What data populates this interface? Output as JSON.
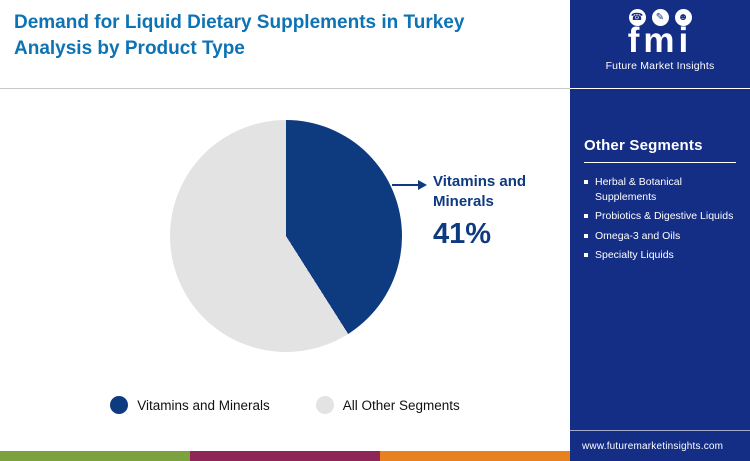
{
  "header": {
    "title_line1": "Demand for Liquid Dietary Supplements in Turkey",
    "title_line2": "Analysis by Product Type"
  },
  "chart_data": {
    "type": "pie",
    "title": "Demand for Liquid Dietary Supplements in Turkey - Analysis by Product Type",
    "slices": [
      {
        "label": "Vitamins and Minerals",
        "value": 41,
        "color": "#0e3a80"
      },
      {
        "label": "All Other Segments",
        "value": 59,
        "color": "#e3e3e4"
      }
    ],
    "start_angle_deg": 0,
    "direction": "clockwise",
    "callout": {
      "label": "Vitamins and Minerals",
      "value": "41%"
    },
    "legend_position": "bottom"
  },
  "sidebar": {
    "logo": {
      "text": "fmi",
      "subtitle": "Future Market Insights",
      "icons": [
        {
          "name": "phone-icon",
          "glyph": "☎"
        },
        {
          "name": "pen-icon",
          "glyph": "✎"
        },
        {
          "name": "person-icon",
          "glyph": "☻"
        }
      ]
    },
    "section_title": "Other Segments",
    "items": [
      "Herbal & Botanical Supplements",
      "Probiotics & Digestive Liquids",
      "Omega-3 and Oils",
      "Specialty Liquids"
    ],
    "website": "www.futuremarketinsights.com"
  },
  "colors": {
    "title_blue": "#0d73b4",
    "navy": "#0e3a80",
    "slice_gray": "#e3e3e4",
    "sidebar_blue": "#142d85",
    "divider_gray": "#c9c9c9"
  },
  "footer_stripe": [
    "#7ca13e",
    "#8e2657",
    "#e8821e"
  ]
}
